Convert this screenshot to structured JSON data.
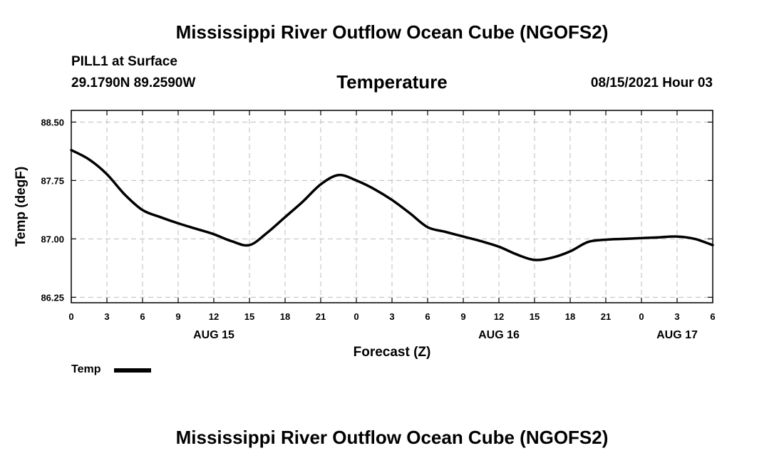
{
  "header": {
    "title": "Mississippi River Outflow Ocean Cube (NGOFS2)",
    "station": "PILL1 at Surface",
    "coords": "29.1790N  89.2590W",
    "subtitle": "Temperature",
    "datetime": "08/15/2021 Hour 03"
  },
  "footer": {
    "title": "Mississippi River Outflow Ocean Cube (NGOFS2)"
  },
  "legend": {
    "label": "Temp"
  },
  "chart_data": {
    "type": "line",
    "title": "Temperature",
    "xlabel": "Forecast (Z)",
    "ylabel": "Temp (degF)",
    "xlim": [
      0,
      54
    ],
    "ylim": [
      86.18,
      88.65
    ],
    "grid": true,
    "legend_position": "bottom-left",
    "x_ticks": [
      0,
      3,
      6,
      9,
      12,
      15,
      18,
      21,
      24,
      27,
      30,
      33,
      36,
      39,
      42,
      45,
      48,
      51,
      54
    ],
    "x_tick_labels": [
      "0",
      "3",
      "6",
      "9",
      "12",
      "15",
      "18",
      "21",
      "0",
      "3",
      "6",
      "9",
      "12",
      "15",
      "18",
      "21",
      "0",
      "3",
      "6"
    ],
    "y_ticks": [
      86.25,
      87.0,
      87.75,
      88.5
    ],
    "y_tick_labels": [
      "86.25",
      "87.00",
      "87.75",
      "88.50"
    ],
    "date_labels": [
      {
        "x": 12,
        "label": "AUG 15"
      },
      {
        "x": 36,
        "label": "AUG 16"
      },
      {
        "x": 51,
        "label": "AUG 17"
      }
    ],
    "series": [
      {
        "name": "Temp",
        "color": "#000000",
        "x": [
          0,
          1.5,
          3,
          4.5,
          6,
          7.5,
          9,
          10.5,
          12,
          13.5,
          15,
          16.5,
          18,
          19.5,
          21,
          22.5,
          24,
          25.5,
          27,
          28.5,
          30,
          31.5,
          33,
          34.5,
          36,
          37.5,
          39,
          40.5,
          42,
          43.5,
          45,
          46.5,
          48,
          49.5,
          51,
          52.5,
          54
        ],
        "values": [
          88.14,
          88.02,
          87.83,
          87.57,
          87.37,
          87.28,
          87.2,
          87.13,
          87.06,
          86.97,
          86.92,
          87.08,
          87.28,
          87.48,
          87.7,
          87.82,
          87.75,
          87.64,
          87.5,
          87.33,
          87.15,
          87.09,
          87.03,
          86.97,
          86.9,
          86.8,
          86.73,
          86.76,
          86.84,
          86.96,
          86.99,
          87.0,
          87.01,
          87.02,
          87.03,
          87.0,
          86.92
        ]
      }
    ]
  }
}
